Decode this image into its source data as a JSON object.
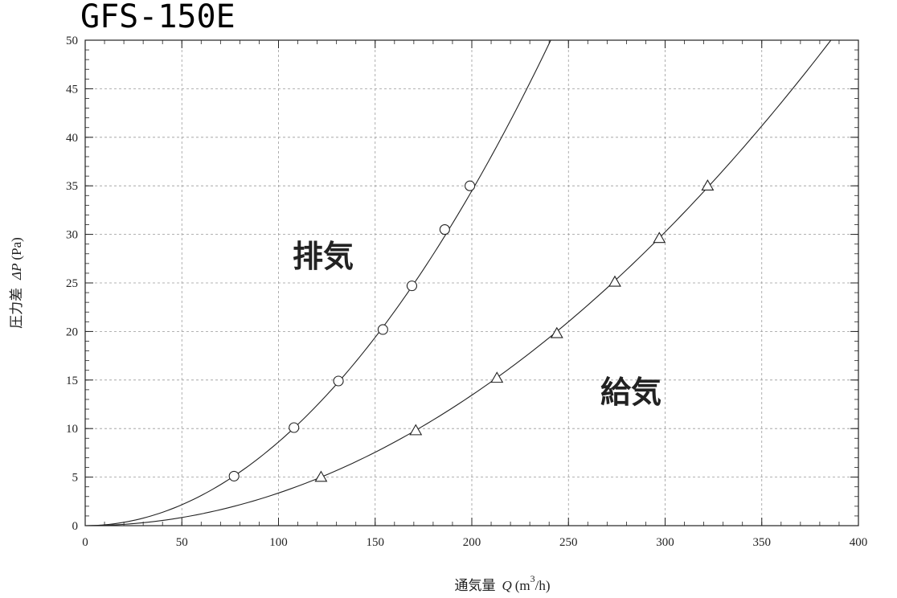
{
  "chart_data": {
    "type": "scatter",
    "title": "GFS-150E",
    "xlabel": "通気量 Q (m³/h)",
    "xlabel_parts": {
      "prefix": "通気量",
      "var": "Q",
      "unit_open": "(m",
      "unit_sup": "3",
      "unit_close": "/h)"
    },
    "ylabel": "圧力差 ΔP (Pa)",
    "ylabel_parts": {
      "prefix": "圧力差",
      "var": "ΔP",
      "unit": "(Pa)"
    },
    "xlim": [
      0,
      400
    ],
    "ylim": [
      0,
      50
    ],
    "xticks": [
      0,
      50,
      100,
      150,
      200,
      250,
      300,
      350,
      400
    ],
    "yticks": [
      0,
      5,
      10,
      15,
      20,
      25,
      30,
      35,
      40,
      45,
      50
    ],
    "grid": true,
    "series": [
      {
        "name": "排気",
        "marker": "circle",
        "x": [
          77,
          108,
          131,
          154,
          169,
          186,
          199
        ],
        "y": [
          5.1,
          10.1,
          14.9,
          20.2,
          24.7,
          30.5,
          35.0
        ],
        "fit_coefficient": 0.000862
      },
      {
        "name": "給気",
        "marker": "triangle",
        "x": [
          122,
          171,
          213,
          244,
          274,
          297,
          322
        ],
        "y": [
          5.0,
          9.8,
          15.2,
          19.8,
          25.1,
          29.6,
          35.0
        ],
        "fit_coefficient": 0.000336
      }
    ]
  }
}
